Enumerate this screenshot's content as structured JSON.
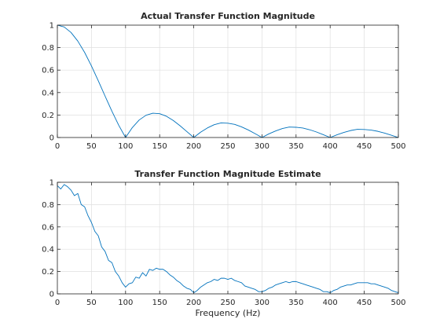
{
  "chart_data": [
    {
      "type": "line",
      "title": "Actual Transfer Function Magnitude",
      "xlabel": "",
      "ylabel": "",
      "xlim": [
        0,
        500
      ],
      "ylim": [
        0,
        1
      ],
      "xticks": [
        0,
        50,
        100,
        150,
        200,
        250,
        300,
        350,
        400,
        450,
        500
      ],
      "yticks": [
        0,
        0.2,
        0.4,
        0.6,
        0.8,
        1
      ],
      "ytick_labels": [
        "0",
        "0.2",
        "0.4",
        "0.6",
        "0.8",
        "1"
      ],
      "grid": true,
      "color": "#0072bd",
      "series": [
        {
          "x": [
            0,
            10,
            20,
            30,
            40,
            50,
            60,
            70,
            80,
            90,
            100,
            110,
            120,
            130,
            140,
            150,
            160,
            170,
            180,
            190,
            200,
            210,
            220,
            230,
            240,
            250,
            260,
            270,
            280,
            290,
            300,
            310,
            320,
            330,
            340,
            350,
            360,
            370,
            380,
            390,
            400,
            410,
            420,
            430,
            440,
            450,
            460,
            470,
            480,
            490,
            500
          ],
          "y": [
            1.0,
            0.984,
            0.935,
            0.858,
            0.757,
            0.637,
            0.505,
            0.368,
            0.234,
            0.109,
            0.0,
            0.089,
            0.156,
            0.198,
            0.216,
            0.212,
            0.189,
            0.151,
            0.104,
            0.052,
            0.0,
            0.047,
            0.085,
            0.114,
            0.13,
            0.127,
            0.117,
            0.095,
            0.067,
            0.034,
            0.0,
            0.032,
            0.058,
            0.08,
            0.093,
            0.091,
            0.084,
            0.069,
            0.049,
            0.025,
            0.0,
            0.024,
            0.045,
            0.062,
            0.073,
            0.071,
            0.066,
            0.055,
            0.039,
            0.02,
            0.0
          ]
        }
      ]
    },
    {
      "type": "line",
      "title": "Transfer Function Magnitude Estimate",
      "xlabel": "Frequency (Hz)",
      "ylabel": "",
      "xlim": [
        0,
        500
      ],
      "ylim": [
        0,
        1
      ],
      "xticks": [
        0,
        50,
        100,
        150,
        200,
        250,
        300,
        350,
        400,
        450,
        500
      ],
      "yticks": [
        0,
        0.2,
        0.4,
        0.6,
        0.8,
        1
      ],
      "ytick_labels": [
        "0",
        "0.2",
        "0.4",
        "0.6",
        "0.8",
        "1"
      ],
      "grid": true,
      "color": "#0072bd",
      "series": [
        {
          "x": [
            0,
            5,
            10,
            15,
            20,
            25,
            30,
            35,
            40,
            45,
            50,
            55,
            60,
            65,
            70,
            75,
            80,
            85,
            90,
            95,
            100,
            105,
            110,
            115,
            120,
            125,
            130,
            135,
            140,
            145,
            150,
            155,
            160,
            165,
            170,
            175,
            180,
            185,
            190,
            195,
            200,
            205,
            210,
            215,
            220,
            225,
            230,
            235,
            240,
            245,
            250,
            255,
            260,
            265,
            270,
            275,
            280,
            285,
            290,
            295,
            300,
            305,
            310,
            315,
            320,
            325,
            330,
            335,
            340,
            345,
            350,
            355,
            360,
            365,
            370,
            375,
            380,
            385,
            390,
            395,
            400,
            405,
            410,
            415,
            420,
            425,
            430,
            435,
            440,
            445,
            450,
            455,
            460,
            465,
            470,
            475,
            480,
            485,
            490,
            495,
            500
          ],
          "y": [
            0.97,
            0.94,
            0.98,
            0.96,
            0.93,
            0.88,
            0.9,
            0.8,
            0.78,
            0.7,
            0.64,
            0.56,
            0.52,
            0.42,
            0.38,
            0.3,
            0.28,
            0.2,
            0.16,
            0.1,
            0.06,
            0.09,
            0.1,
            0.15,
            0.14,
            0.19,
            0.16,
            0.22,
            0.21,
            0.23,
            0.22,
            0.22,
            0.2,
            0.17,
            0.15,
            0.12,
            0.1,
            0.07,
            0.05,
            0.04,
            0.01,
            0.03,
            0.06,
            0.08,
            0.1,
            0.11,
            0.13,
            0.12,
            0.14,
            0.14,
            0.13,
            0.14,
            0.12,
            0.11,
            0.1,
            0.07,
            0.06,
            0.05,
            0.04,
            0.02,
            0.02,
            0.03,
            0.05,
            0.06,
            0.08,
            0.09,
            0.1,
            0.11,
            0.1,
            0.11,
            0.11,
            0.1,
            0.09,
            0.08,
            0.07,
            0.06,
            0.05,
            0.04,
            0.02,
            0.02,
            0.01,
            0.03,
            0.04,
            0.06,
            0.07,
            0.08,
            0.08,
            0.09,
            0.1,
            0.1,
            0.1,
            0.1,
            0.09,
            0.09,
            0.08,
            0.07,
            0.06,
            0.05,
            0.03,
            0.02,
            0.01
          ]
        }
      ]
    }
  ]
}
